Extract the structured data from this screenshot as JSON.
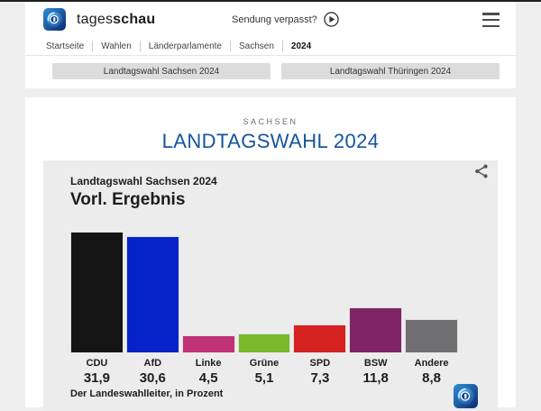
{
  "header": {
    "brand_regular": "tages",
    "brand_bold": "schau",
    "missed_broadcast_label": "Sendung verpasst?"
  },
  "breadcrumb": {
    "items": [
      {
        "label": "Startseite",
        "active": false
      },
      {
        "label": "Wahlen",
        "active": false
      },
      {
        "label": "Länderparlamente",
        "active": false
      },
      {
        "label": "Sachsen",
        "active": false
      },
      {
        "label": "2024",
        "active": true
      }
    ]
  },
  "quick_links": {
    "left": "Landtagswahl Sachsen 2024",
    "right": "Landtagswahl Thüringen 2024"
  },
  "page": {
    "kicker": "SACHSEN",
    "title": "LANDTAGSWAHL 2024"
  },
  "chart_card": {
    "subtitle": "Landtagswahl Sachsen 2024",
    "title": "Vorl. Ergebnis",
    "source": "Der Landeswahlleiter, in Prozent"
  },
  "chart_data": {
    "type": "bar",
    "title": "Vorl. Ergebnis",
    "subtitle": "Landtagswahl Sachsen 2024",
    "categories": [
      "CDU",
      "AfD",
      "Linke",
      "Grüne",
      "SPD",
      "BSW",
      "Andere"
    ],
    "values": [
      31.9,
      30.6,
      4.5,
      5.1,
      7.3,
      11.8,
      8.8
    ],
    "value_labels": [
      "31,9",
      "30,6",
      "4,5",
      "5,1",
      "7,3",
      "11,8",
      "8,8"
    ],
    "colors": [
      "#141414",
      "#0523c8",
      "#c03276",
      "#7ab929",
      "#d62121",
      "#802465",
      "#707072"
    ],
    "unit": "Prozent",
    "source": "Der Landeswahlleiter, in Prozent",
    "ylim": [
      0,
      32.5
    ],
    "grid": false,
    "legend": "none"
  },
  "theme": {
    "title_blue": "#15549e",
    "card_bg": "#ececec",
    "page_bg": "#efefef"
  }
}
